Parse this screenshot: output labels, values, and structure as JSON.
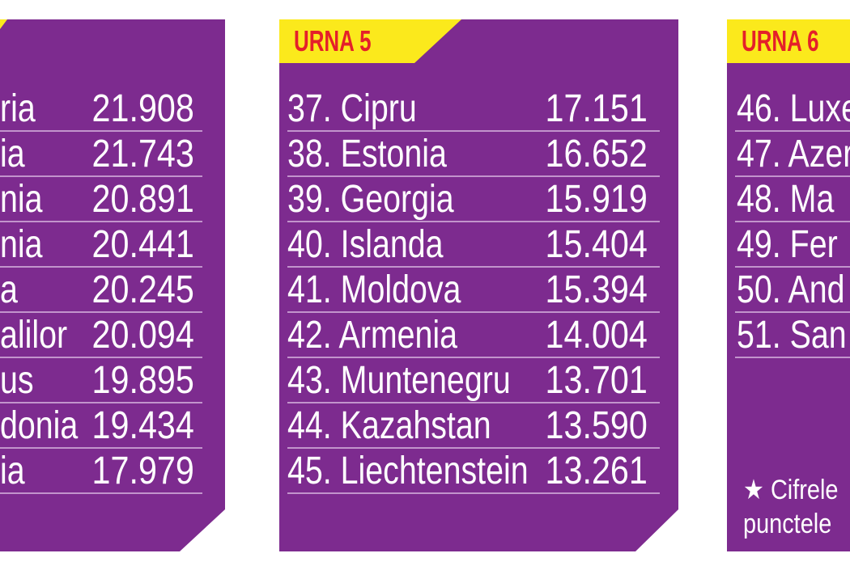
{
  "panels": [
    {
      "rows": [
        {
          "name": "ria",
          "value": "21.908"
        },
        {
          "name": "ia",
          "value": "21.743"
        },
        {
          "name": "nia",
          "value": "20.891"
        },
        {
          "name": "nia",
          "value": "20.441"
        },
        {
          "name": "a",
          "value": "20.245"
        },
        {
          "name": "alilor",
          "value": "20.094"
        },
        {
          "name": "us",
          "value": "19.895"
        },
        {
          "name": "donia",
          "value": "19.434"
        },
        {
          "name": "ia",
          "value": "17.979"
        }
      ]
    },
    {
      "header": "URNA 5",
      "rows": [
        {
          "name": "37. Cipru",
          "value": "17.151"
        },
        {
          "name": "38. Estonia",
          "value": "16.652"
        },
        {
          "name": "39. Georgia",
          "value": "15.919"
        },
        {
          "name": "40. Islanda",
          "value": "15.404"
        },
        {
          "name": "41. Moldova",
          "value": "15.394"
        },
        {
          "name": "42. Armenia",
          "value": "14.004"
        },
        {
          "name": "43. Muntenegru",
          "value": "13.701"
        },
        {
          "name": "44. Kazahstan",
          "value": "13.590"
        },
        {
          "name": "45. Liechtenstein",
          "value": "13.261"
        }
      ]
    },
    {
      "header": "URNA 6",
      "rows": [
        {
          "name": "46. Luxe"
        },
        {
          "name": "47. Azer"
        },
        {
          "name": "48. Ma"
        },
        {
          "name": "49. Fer"
        },
        {
          "name": "50. And"
        },
        {
          "name": "51. San"
        }
      ],
      "note": [
        "★ Cifrele",
        "punctele"
      ]
    }
  ]
}
